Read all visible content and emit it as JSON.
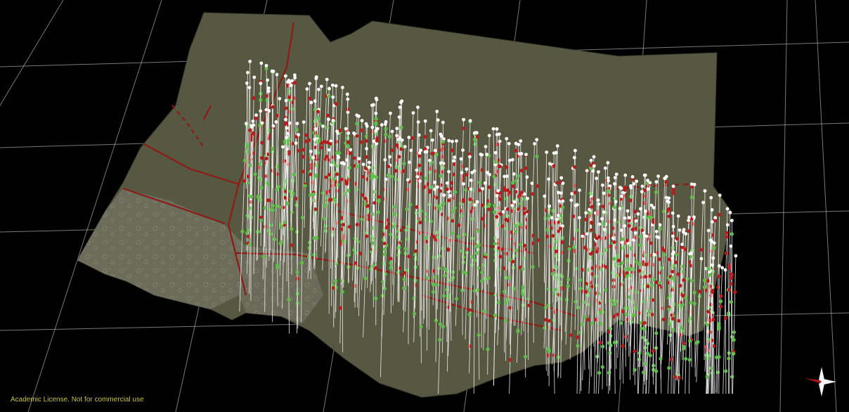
{
  "app": {
    "license_text": "Academic License. Not for commercial use"
  },
  "viewport": {
    "background_color": "#000000",
    "grid_color": "#d8d8d8",
    "surface_color": "#5a5a45",
    "map_line_color": "#8e1a14",
    "hole_trace_color": "#f2f2f2",
    "hole_collar_color": "#ffffff",
    "interval_red_color": "#b81c1c",
    "interval_green_color": "#5fbf4a"
  },
  "compass": {
    "icon": "north-arrow-compass-icon",
    "pointer_color": "#e02020"
  }
}
